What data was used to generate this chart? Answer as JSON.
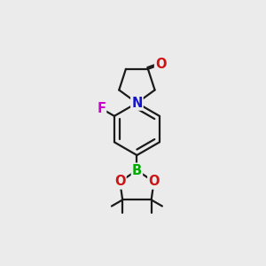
{
  "background_color": "#ebebeb",
  "bond_color": "#1a1a1a",
  "atom_colors": {
    "N": "#1414cc",
    "O": "#cc1414",
    "F": "#cc00cc",
    "B": "#00aa00",
    "C": "#1a1a1a"
  },
  "font_size_atoms": 10.5,
  "lw": 1.6
}
